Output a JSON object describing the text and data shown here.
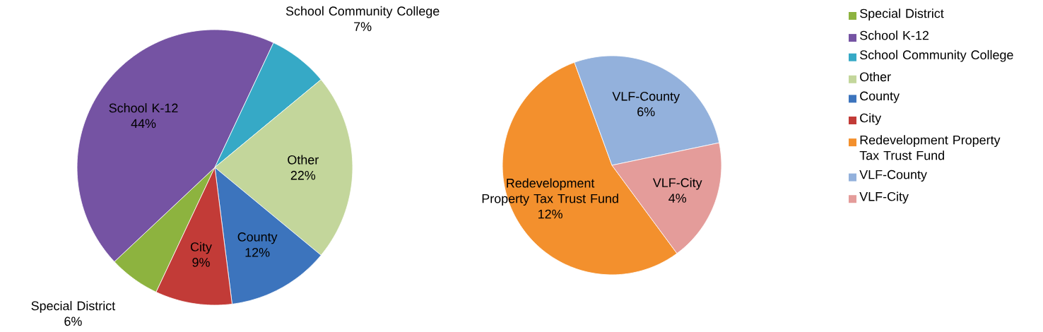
{
  "chart_data": [
    {
      "type": "pie",
      "categories": [
        "Special District",
        "School K-12",
        "School Community College",
        "Other",
        "County",
        "City"
      ],
      "values": [
        6,
        44,
        7,
        22,
        12,
        9
      ],
      "value_labels": [
        "6%",
        "44%",
        "7%",
        "22%",
        "12%",
        "9%"
      ],
      "colors": [
        "#8db33f",
        "#7553a3",
        "#36a9c6",
        "#c3d69b",
        "#3c74bd",
        "#c23b37"
      ],
      "legend": "right"
    },
    {
      "type": "pie",
      "categories": [
        "Redevelopment Property Tax Trust Fund",
        "VLF-County",
        "VLF-City"
      ],
      "values": [
        12,
        6,
        4
      ],
      "value_labels": [
        "12%",
        "6%",
        "4%"
      ],
      "colors": [
        "#f3902d",
        "#93b1dc",
        "#e49c9a"
      ],
      "legend": "right"
    }
  ]
}
